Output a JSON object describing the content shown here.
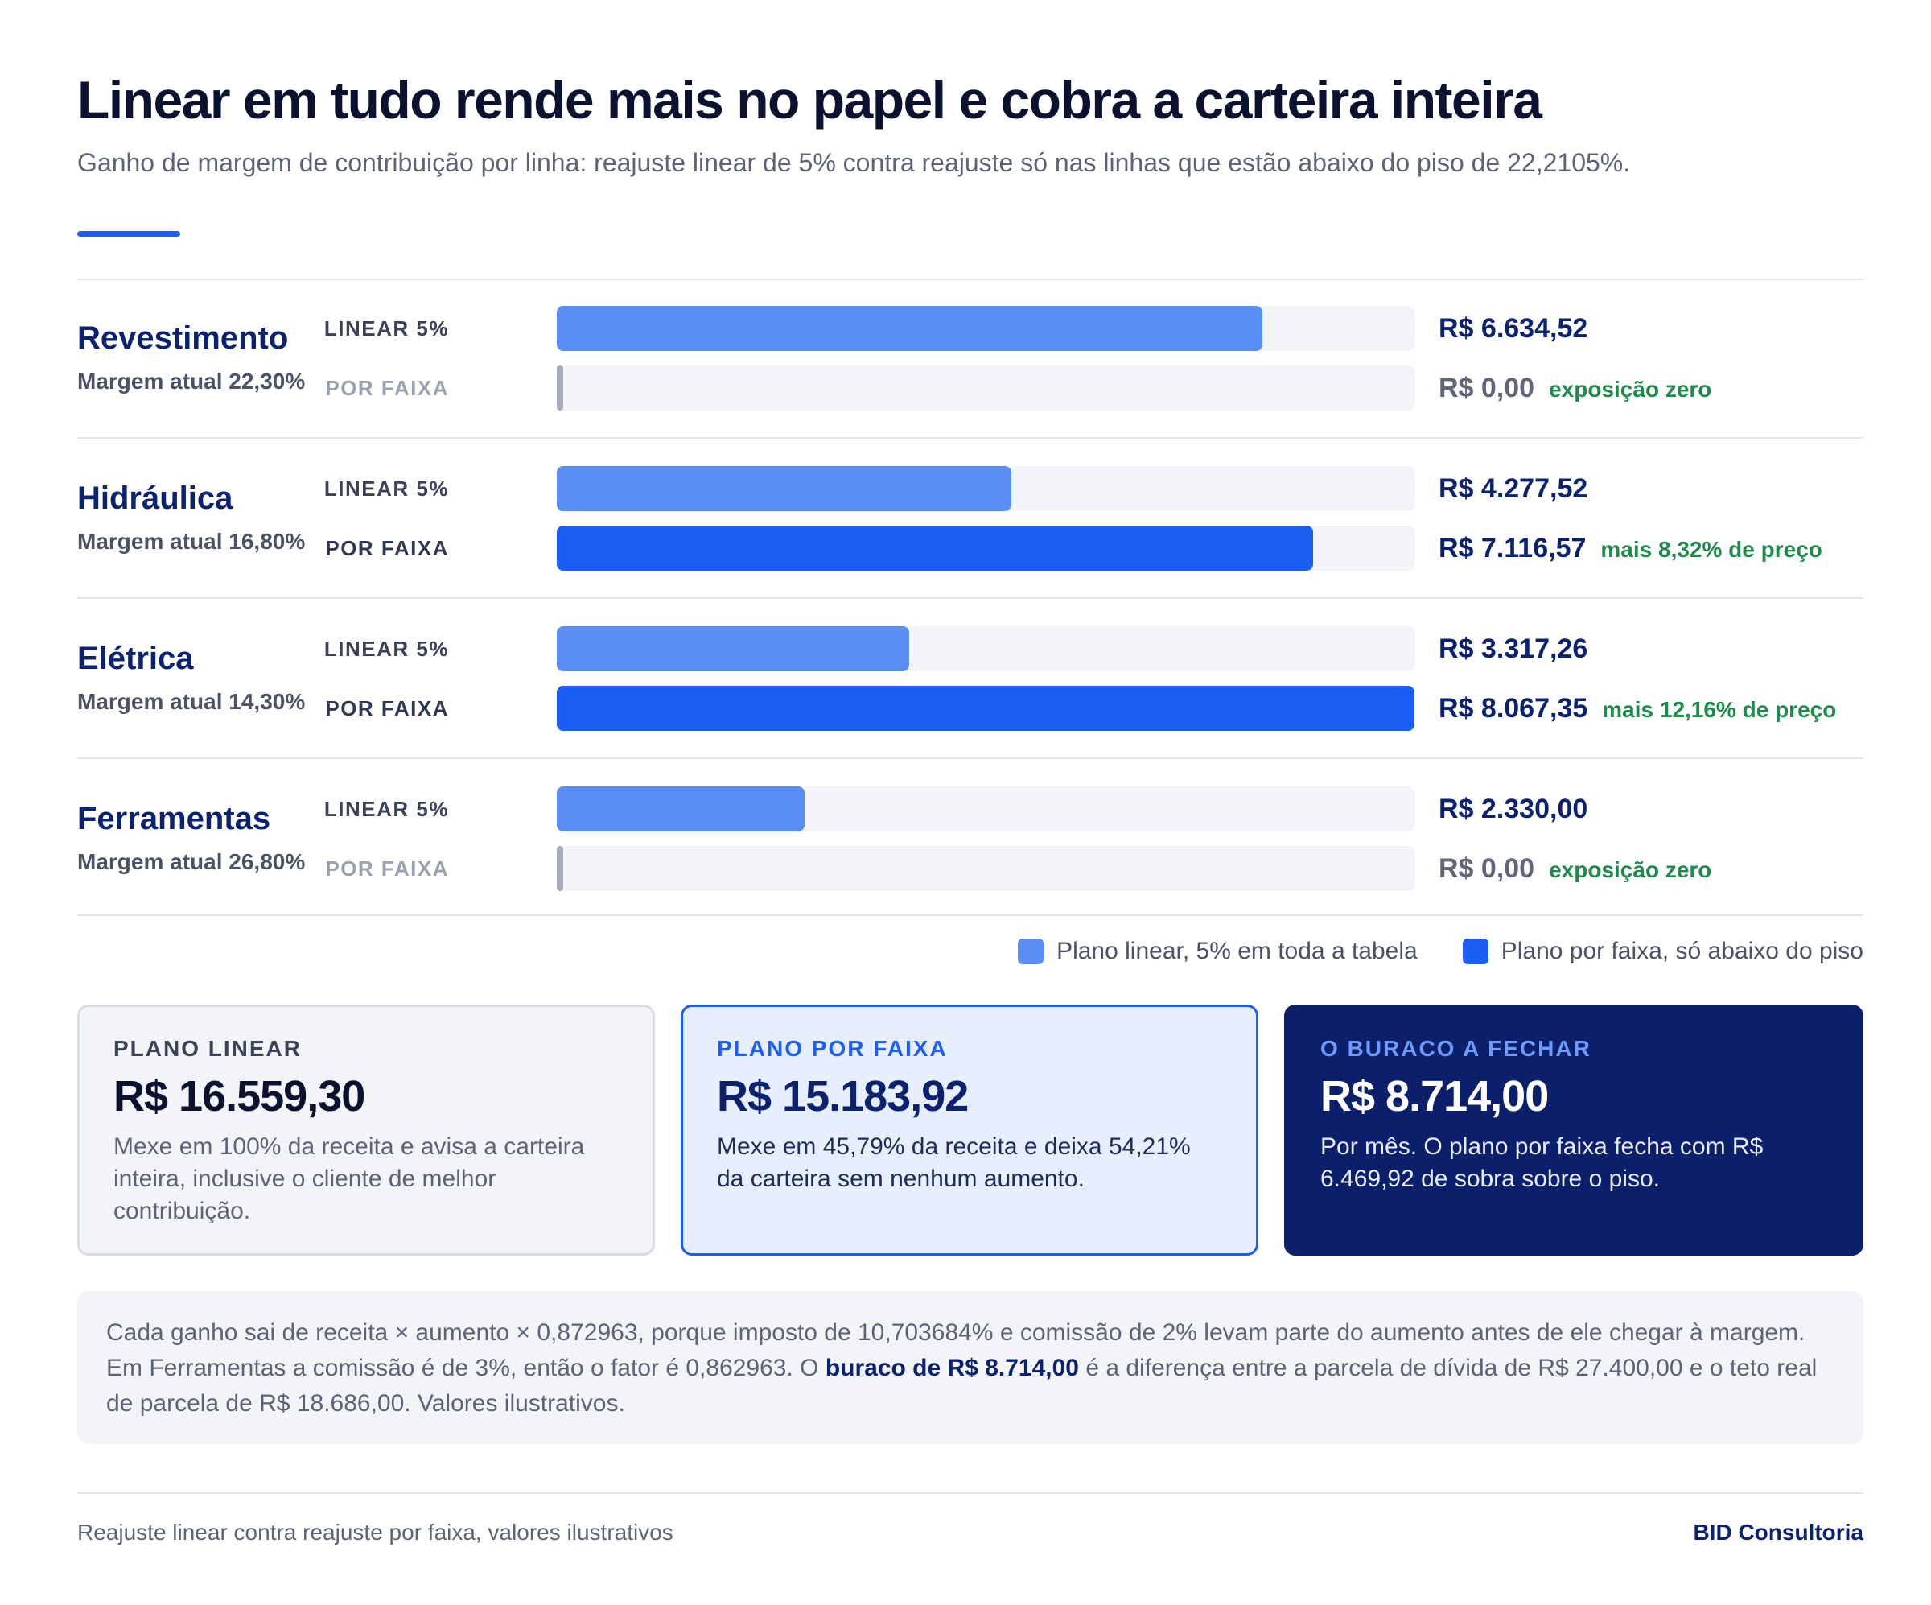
{
  "header": {
    "title": "Linear em tudo rende mais no papel e cobra a carteira inteira",
    "subtitle": "Ganho de margem de contribuição por linha: reajuste linear de 5% contra reajuste só nas linhas que estão abaixo do piso de 22,2105%."
  },
  "chart_data": {
    "type": "bar",
    "orientation": "horizontal",
    "categories": [
      "Revestimento",
      "Hidráulica",
      "Elétrica",
      "Ferramentas"
    ],
    "category_notes": [
      "Margem atual 22,30%",
      "Margem atual 16,80%",
      "Margem atual 14,30%",
      "Margem atual 26,80%"
    ],
    "xlim": [
      0,
      8067.35
    ],
    "series": [
      {
        "name": "Plano linear, 5% em toda a tabela",
        "row_label": "LINEAR 5%",
        "color": "#5b8df7",
        "values": [
          6634.52,
          4277.52,
          3317.26,
          2330.0
        ],
        "value_labels": [
          "R$ 6.634,52",
          "R$ 4.277,52",
          "R$ 3.317,26",
          "R$ 2.330,00"
        ],
        "annotations": [
          "",
          "",
          "",
          ""
        ]
      },
      {
        "name": "Plano por faixa, só abaixo do piso",
        "row_label": "POR FAIXA",
        "color": "#1a5ef3",
        "values": [
          0,
          7116.57,
          8067.35,
          0
        ],
        "value_labels": [
          "R$ 0,00",
          "R$ 7.116,57",
          "R$ 8.067,35",
          "R$ 0,00"
        ],
        "annotations": [
          "exposição zero",
          "mais 8,32% de preço",
          "mais 12,16% de preço",
          "exposição zero"
        ]
      }
    ],
    "legend": "bottom-right"
  },
  "cards": [
    {
      "title": "PLANO LINEAR",
      "value": "R$ 16.559,30",
      "text": "Mexe em 100% da receita e avisa a carteira inteira, inclusive o cliente de melhor contribuição."
    },
    {
      "title": "PLANO POR FAIXA",
      "value": "R$ 15.183,92",
      "text": "Mexe em 45,79% da receita e deixa 54,21% da carteira sem nenhum aumento."
    },
    {
      "title": "O BURACO A FECHAR",
      "value": "R$ 8.714,00",
      "text": "Por mês. O plano por faixa fecha com R$ 6.469,92 de sobra sobre o piso."
    }
  ],
  "footnote": {
    "part1": "Cada ganho sai de receita × aumento × 0,872963, porque imposto de 10,703684% e comissão de 2% levam parte do aumento antes de ele chegar à margem. Em Ferramentas a comissão é de 3%, então o fator é 0,862963. O ",
    "bold": "buraco de R$ 8.714,00",
    "part2": " é a diferença entre a parcela de dívida de R$ 27.400,00 e o teto real de parcela de R$ 18.686,00. Valores ilustrativos."
  },
  "footer": {
    "left": "Reajuste linear contra reajuste por faixa, valores ilustrativos",
    "right": "BID Consultoria"
  }
}
